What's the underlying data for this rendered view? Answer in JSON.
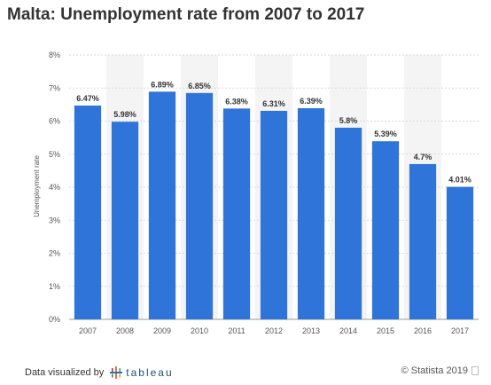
{
  "title": "Malta: Unemployment rate from 2007 to 2017",
  "footer": {
    "left_label": "Data visualized by",
    "tableau_text": "tableau",
    "right_label": "© Statista 2019"
  },
  "chart_data": {
    "type": "bar",
    "categories": [
      "2007",
      "2008",
      "2009",
      "2010",
      "2011",
      "2012",
      "2013",
      "2014",
      "2015",
      "2016",
      "2017"
    ],
    "values": [
      6.47,
      5.98,
      6.89,
      6.85,
      6.38,
      6.31,
      6.39,
      5.8,
      5.39,
      4.7,
      4.01
    ],
    "data_labels": [
      "6.47%",
      "5.98%",
      "6.89%",
      "6.85%",
      "6.38%",
      "6.31%",
      "6.39%",
      "5.8%",
      "5.39%",
      "4.7%",
      "4.01%"
    ],
    "ylabel": "Unemployment rate",
    "xlabel": "",
    "ylim": [
      0,
      8
    ],
    "yticks": [
      "0%",
      "1%",
      "2%",
      "3%",
      "4%",
      "5%",
      "6%",
      "7%",
      "8%"
    ],
    "bar_color": "#2f74d8",
    "grid": true,
    "alternating_column_shading": true
  }
}
